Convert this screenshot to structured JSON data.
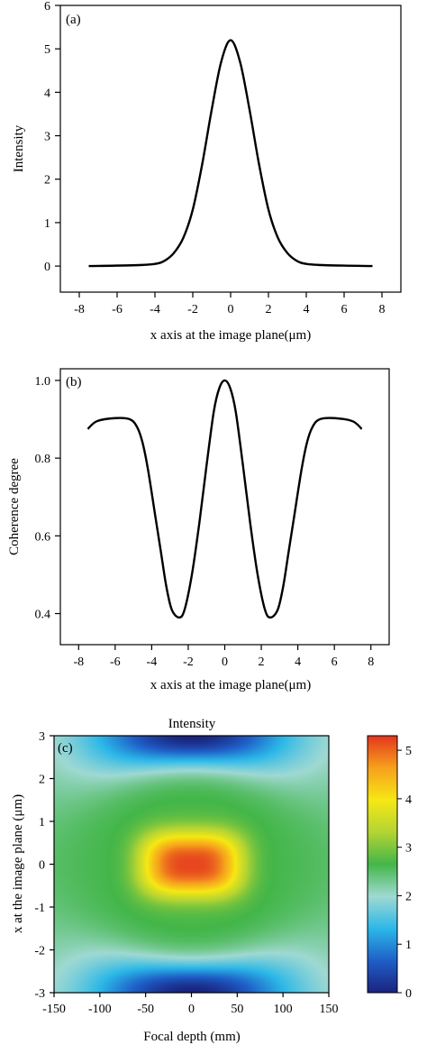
{
  "chart_data": [
    {
      "type": "line",
      "panel_label": "(a)",
      "title": "",
      "xlabel": "x axis at the image plane(μm)",
      "ylabel": "Intensity",
      "xlim": [
        -9,
        9
      ],
      "ylim": [
        -0.6,
        6
      ],
      "xticks": [
        -8,
        -6,
        -4,
        -2,
        0,
        2,
        4,
        6,
        8
      ],
      "yticks": [
        0,
        1,
        2,
        3,
        4,
        5,
        6
      ],
      "grid": false,
      "series": [
        {
          "x": [
            -7.5,
            -5,
            -4,
            -3.5,
            -3,
            -2.5,
            -2,
            -1.5,
            -1,
            -0.5,
            0,
            0.5,
            1,
            1.5,
            2,
            2.5,
            3,
            3.5,
            4,
            5,
            7.5
          ],
          "y": [
            0.0,
            0.02,
            0.05,
            0.12,
            0.3,
            0.65,
            1.3,
            2.35,
            3.6,
            4.7,
            5.2,
            4.7,
            3.6,
            2.35,
            1.3,
            0.65,
            0.3,
            0.12,
            0.05,
            0.02,
            0.0
          ]
        }
      ]
    },
    {
      "type": "line",
      "panel_label": "(b)",
      "title": "",
      "xlabel": "x axis at the image plane(μm)",
      "ylabel": "Coherence degree",
      "xlim": [
        -9,
        9
      ],
      "ylim": [
        0.32,
        1.03
      ],
      "xticks": [
        -8,
        -6,
        -4,
        -2,
        0,
        2,
        4,
        6,
        8
      ],
      "yticks": [
        0.4,
        0.6,
        0.8,
        1.0
      ],
      "ytick_labels": [
        "0.4",
        "0.6",
        "0.8",
        "1.0"
      ],
      "grid": false,
      "series": [
        {
          "x": [
            -7.5,
            -7,
            -6,
            -5.2,
            -4.8,
            -4.5,
            -4.2,
            -3.8,
            -3.5,
            -3.2,
            -2.9,
            -2.5,
            -2.2,
            -1.8,
            -1.4,
            -1,
            -0.6,
            -0.3,
            0,
            0.3,
            0.6,
            1,
            1.4,
            1.8,
            2.2,
            2.5,
            2.9,
            3.2,
            3.5,
            3.8,
            4.2,
            4.5,
            4.8,
            5.2,
            6,
            7,
            7.5
          ],
          "y": [
            0.875,
            0.895,
            0.903,
            0.9,
            0.88,
            0.84,
            0.77,
            0.65,
            0.56,
            0.47,
            0.41,
            0.39,
            0.41,
            0.5,
            0.63,
            0.78,
            0.92,
            0.98,
            1.0,
            0.98,
            0.92,
            0.78,
            0.63,
            0.5,
            0.41,
            0.39,
            0.41,
            0.47,
            0.56,
            0.65,
            0.77,
            0.84,
            0.88,
            0.9,
            0.903,
            0.895,
            0.875
          ]
        }
      ]
    },
    {
      "type": "heatmap",
      "panel_label": "(c)",
      "title": "Intensity",
      "xlabel": "Focal depth (mm)",
      "ylabel": "x at the image plane (μm)",
      "xlim": [
        -150,
        150
      ],
      "ylim": [
        -3,
        3
      ],
      "xticks": [
        -150,
        -100,
        -50,
        0,
        50,
        100,
        150
      ],
      "yticks": [
        -3,
        -2,
        -1,
        0,
        1,
        2,
        3
      ],
      "colorbar": {
        "range": [
          0,
          5.3
        ],
        "ticks": [
          0,
          1,
          2,
          3,
          4,
          5
        ],
        "colormap": [
          "#1a237e",
          "#1f5fc8",
          "#2cb8e8",
          "#9fd9d2",
          "#43b649",
          "#b3d433",
          "#f6e814",
          "#f6a01c",
          "#e4361f"
        ]
      },
      "center_peak": 5.2,
      "background_level": 2.7,
      "edge_minimum": 0.1
    }
  ]
}
